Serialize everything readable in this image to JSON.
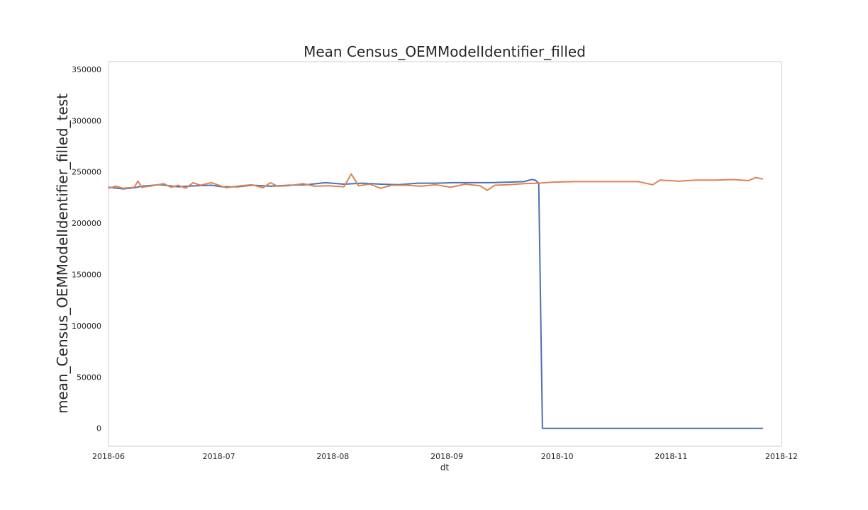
{
  "chart_data": {
    "type": "line",
    "title": "Mean Census_OEMModelIdentifier_filled",
    "xlabel": "dt",
    "ylabel": "mean_Census_OEMModelIdentifier_filled_test",
    "xlim": [
      "2018-06-01",
      "2018-12-01"
    ],
    "ylim": [
      -17500,
      357500
    ],
    "grid": false,
    "x_ticks": [
      "2018-06",
      "2018-07",
      "2018-08",
      "2018-09",
      "2018-10",
      "2018-11",
      "2018-12"
    ],
    "y_ticks": [
      0,
      50000,
      100000,
      150000,
      200000,
      250000,
      300000,
      350000
    ],
    "series": [
      {
        "color": "#4c72b0",
        "points": [
          [
            "2018-06-01",
            235000
          ],
          [
            "2018-06-05",
            233500
          ],
          [
            "2018-06-08",
            234500
          ],
          [
            "2018-06-10",
            236000
          ],
          [
            "2018-06-15",
            237500
          ],
          [
            "2018-06-20",
            235500
          ],
          [
            "2018-06-25",
            236500
          ],
          [
            "2018-06-29",
            237000
          ],
          [
            "2018-07-02",
            235500
          ],
          [
            "2018-07-06",
            235500
          ],
          [
            "2018-07-10",
            237000
          ],
          [
            "2018-07-15",
            236000
          ],
          [
            "2018-07-20",
            237000
          ],
          [
            "2018-07-25",
            237500
          ],
          [
            "2018-07-30",
            239500
          ],
          [
            "2018-08-04",
            238000
          ],
          [
            "2018-08-09",
            239000
          ],
          [
            "2018-08-14",
            238000
          ],
          [
            "2018-08-19",
            237500
          ],
          [
            "2018-08-24",
            239000
          ],
          [
            "2018-08-29",
            239000
          ],
          [
            "2018-09-03",
            239500
          ],
          [
            "2018-09-08",
            239500
          ],
          [
            "2018-09-13",
            239500
          ],
          [
            "2018-09-18",
            240000
          ],
          [
            "2018-09-22",
            240500
          ],
          [
            "2018-09-24",
            242500
          ],
          [
            "2018-09-25",
            242000
          ],
          [
            "2018-09-26",
            239000
          ],
          [
            "2018-09-27",
            0
          ],
          [
            "2018-11-26",
            0
          ]
        ]
      },
      {
        "color": "#dd8452",
        "points": [
          [
            "2018-06-01",
            234000
          ],
          [
            "2018-06-03",
            236000
          ],
          [
            "2018-06-05",
            234000
          ],
          [
            "2018-06-08",
            235000
          ],
          [
            "2018-06-09",
            241000
          ],
          [
            "2018-06-10",
            235000
          ],
          [
            "2018-06-13",
            236500
          ],
          [
            "2018-06-16",
            238500
          ],
          [
            "2018-06-18",
            235000
          ],
          [
            "2018-06-20",
            237000
          ],
          [
            "2018-06-22",
            234000
          ],
          [
            "2018-06-24",
            239500
          ],
          [
            "2018-06-26",
            237000
          ],
          [
            "2018-06-29",
            239500
          ],
          [
            "2018-07-03",
            234500
          ],
          [
            "2018-07-06",
            236000
          ],
          [
            "2018-07-10",
            237500
          ],
          [
            "2018-07-13",
            234500
          ],
          [
            "2018-07-15",
            239500
          ],
          [
            "2018-07-17",
            236000
          ],
          [
            "2018-07-20",
            236500
          ],
          [
            "2018-07-24",
            238500
          ],
          [
            "2018-07-27",
            236000
          ],
          [
            "2018-07-31",
            236500
          ],
          [
            "2018-08-04",
            235500
          ],
          [
            "2018-08-06",
            248000
          ],
          [
            "2018-08-08",
            236500
          ],
          [
            "2018-08-11",
            238000
          ],
          [
            "2018-08-14",
            234000
          ],
          [
            "2018-08-17",
            237000
          ],
          [
            "2018-08-21",
            237000
          ],
          [
            "2018-08-25",
            236000
          ],
          [
            "2018-08-29",
            237500
          ],
          [
            "2018-09-02",
            235000
          ],
          [
            "2018-09-06",
            238000
          ],
          [
            "2018-09-10",
            236500
          ],
          [
            "2018-09-12",
            232000
          ],
          [
            "2018-09-14",
            237000
          ],
          [
            "2018-09-18",
            237500
          ],
          [
            "2018-09-22",
            238500
          ],
          [
            "2018-09-26",
            239000
          ],
          [
            "2018-09-30",
            240000
          ],
          [
            "2018-10-06",
            240500
          ],
          [
            "2018-10-12",
            240500
          ],
          [
            "2018-10-18",
            240500
          ],
          [
            "2018-10-23",
            240500
          ],
          [
            "2018-10-27",
            237500
          ],
          [
            "2018-10-29",
            242000
          ],
          [
            "2018-11-03",
            241000
          ],
          [
            "2018-11-08",
            242000
          ],
          [
            "2018-11-13",
            242000
          ],
          [
            "2018-11-18",
            242500
          ],
          [
            "2018-11-22",
            241500
          ],
          [
            "2018-11-24",
            244500
          ],
          [
            "2018-11-26",
            243000
          ]
        ]
      }
    ]
  }
}
